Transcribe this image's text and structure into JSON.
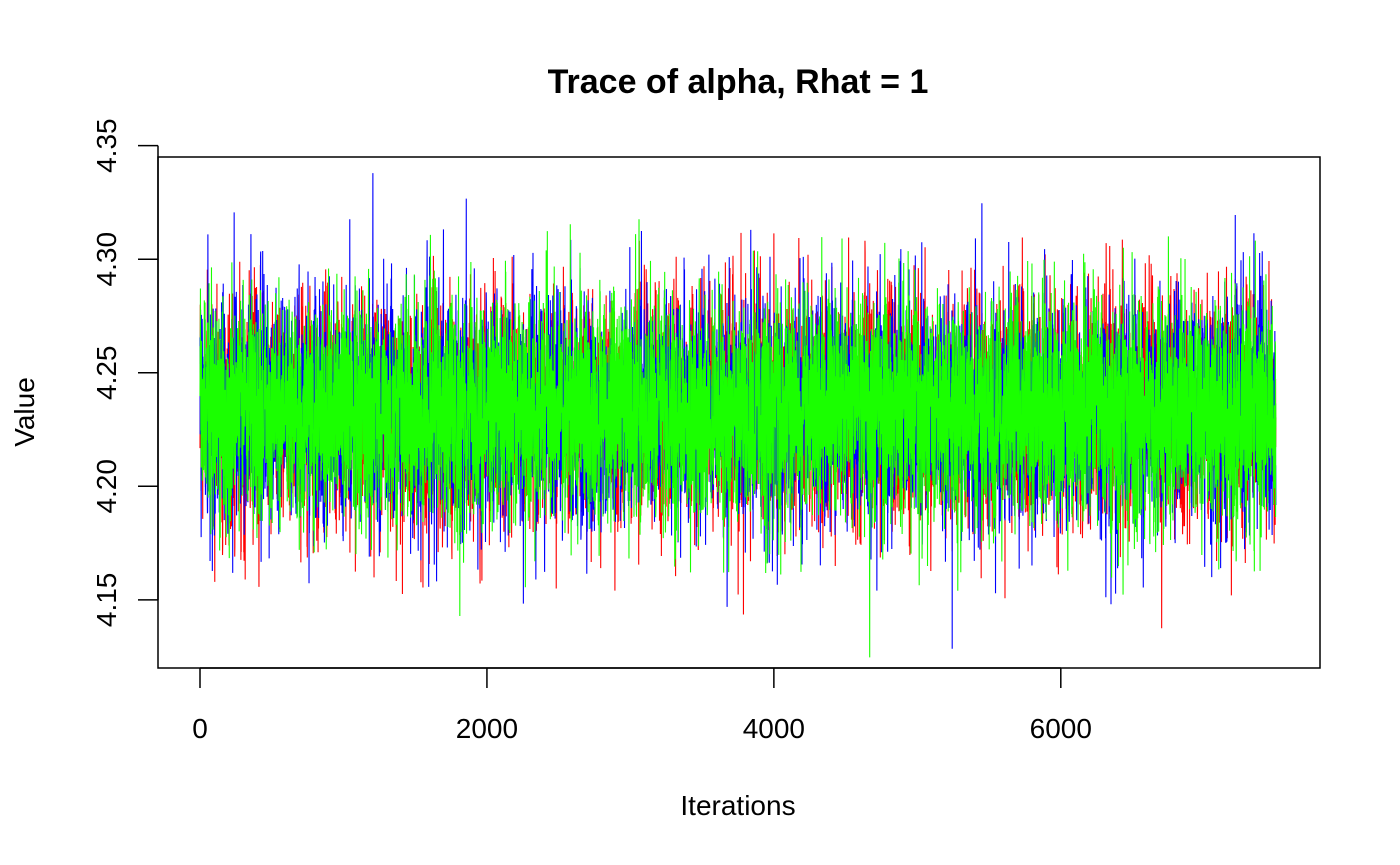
{
  "chart_data": {
    "type": "line",
    "title": "Trace of alpha, Rhat = 1",
    "xlabel": "Iterations",
    "ylabel": "Value",
    "xlim": [
      0,
      7500
    ],
    "ylim": [
      4.12,
      4.345
    ],
    "x_ticks": [
      0,
      2000,
      4000,
      6000
    ],
    "x_tick_labels": [
      "0",
      "2000",
      "4000",
      "6000"
    ],
    "y_ticks": [
      4.15,
      4.2,
      4.25,
      4.3,
      4.35
    ],
    "y_tick_labels": [
      "4.15",
      "4.20",
      "4.25",
      "4.30",
      "4.35"
    ],
    "grid": false,
    "legend": "none",
    "n_iterations": 7500,
    "series": [
      {
        "color": "#ff0000",
        "mean": 4.233,
        "sd": 0.025,
        "min": 4.12,
        "max": 4.344
      },
      {
        "color": "#0000ff",
        "mean": 4.233,
        "sd": 0.025,
        "min": 4.122,
        "max": 4.338
      },
      {
        "color": "#1aff00",
        "mean": 4.233,
        "sd": 0.025,
        "min": 4.122,
        "max": 4.334
      }
    ]
  }
}
